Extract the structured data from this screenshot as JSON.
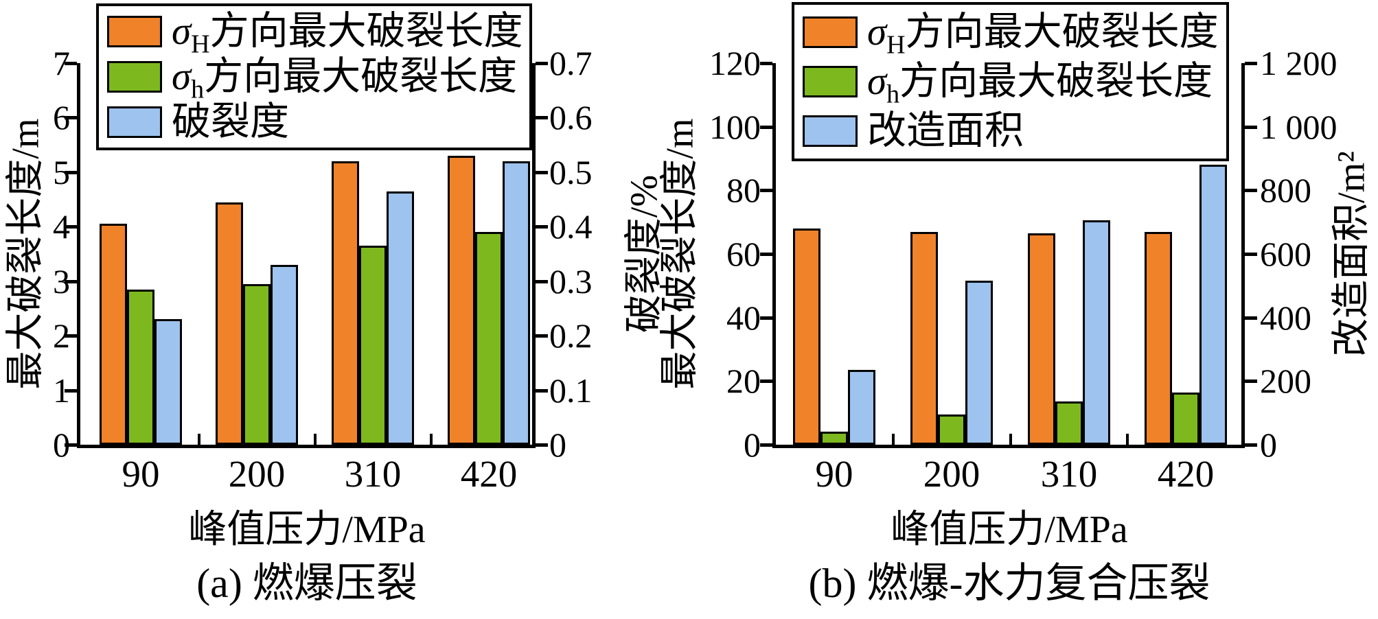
{
  "figure_title": "",
  "legend": {
    "a": [
      {
        "sym": "σ",
        "sub": "H",
        "rest": "方向最大破裂长度"
      },
      {
        "sym": "σ",
        "sub": "h",
        "rest": "方向最大破裂长度"
      },
      {
        "sym": "",
        "sub": "",
        "rest": "破裂度"
      }
    ],
    "b": [
      {
        "sym": "σ",
        "sub": "H",
        "rest": "方向最大破裂长度"
      },
      {
        "sym": "σ",
        "sub": "h",
        "rest": "方向最大破裂长度"
      },
      {
        "sym": "",
        "sub": "",
        "rest": "改造面积"
      }
    ]
  },
  "colors": {
    "orange": "#F0822A",
    "green": "#7DB91E",
    "blue": "#9DC3EE",
    "axis": "#000000"
  },
  "chart_data": [
    {
      "id": "a",
      "type": "bar",
      "title": "(a) 燃爆压裂",
      "xlabel": "峰值压力/MPa",
      "ylabel_left": "最大破裂长度/m",
      "ylabel_right": "破裂度/%",
      "categories": [
        "90",
        "200",
        "310",
        "420"
      ],
      "axis_left": {
        "min": 0,
        "max": 7,
        "ticks": [
          "0",
          "1",
          "2",
          "3",
          "4",
          "5",
          "6",
          "7"
        ]
      },
      "axis_right": {
        "min": 0,
        "max": 0.7,
        "ticks": [
          "0",
          "0.1",
          "0.2",
          "0.3",
          "0.4",
          "0.5",
          "0.6",
          "0.7"
        ]
      },
      "grid": false,
      "legend_position": "top-inside",
      "series": [
        {
          "name": "σH方向最大破裂长度",
          "axis": "left",
          "color": "#F0822A",
          "values": [
            4.05,
            4.45,
            5.2,
            5.3
          ]
        },
        {
          "name": "σh方向最大破裂长度",
          "axis": "left",
          "color": "#7DB91E",
          "values": [
            2.85,
            2.95,
            3.65,
            3.9
          ]
        },
        {
          "name": "破裂度",
          "axis": "right",
          "color": "#9DC3EE",
          "values": [
            0.23,
            0.33,
            0.465,
            0.52
          ]
        }
      ]
    },
    {
      "id": "b",
      "type": "bar",
      "title": "(b) 燃爆-水力复合压裂",
      "xlabel": "峰值压力/MPa",
      "ylabel_left": "最大破裂长度/m",
      "ylabel_right": "改造面积/m²",
      "categories": [
        "90",
        "200",
        "310",
        "420"
      ],
      "axis_left": {
        "min": 0,
        "max": 120,
        "ticks": [
          "0",
          "20",
          "40",
          "60",
          "80",
          "100",
          "120"
        ]
      },
      "axis_right": {
        "min": 0,
        "max": 1200,
        "ticks": [
          "0",
          "200",
          "400",
          "600",
          "800",
          "1 000",
          "1 200"
        ]
      },
      "grid": false,
      "legend_position": "top-inside",
      "series": [
        {
          "name": "σH方向最大破裂长度",
          "axis": "left",
          "color": "#F0822A",
          "values": [
            68,
            67,
            66.5,
            67
          ]
        },
        {
          "name": "σh方向最大破裂长度",
          "axis": "left",
          "color": "#7DB91E",
          "values": [
            4,
            9.5,
            13.5,
            16.5
          ]
        },
        {
          "name": "改造面积",
          "axis": "right",
          "color": "#9DC3EE",
          "values": [
            235,
            515,
            705,
            880
          ]
        }
      ]
    }
  ]
}
